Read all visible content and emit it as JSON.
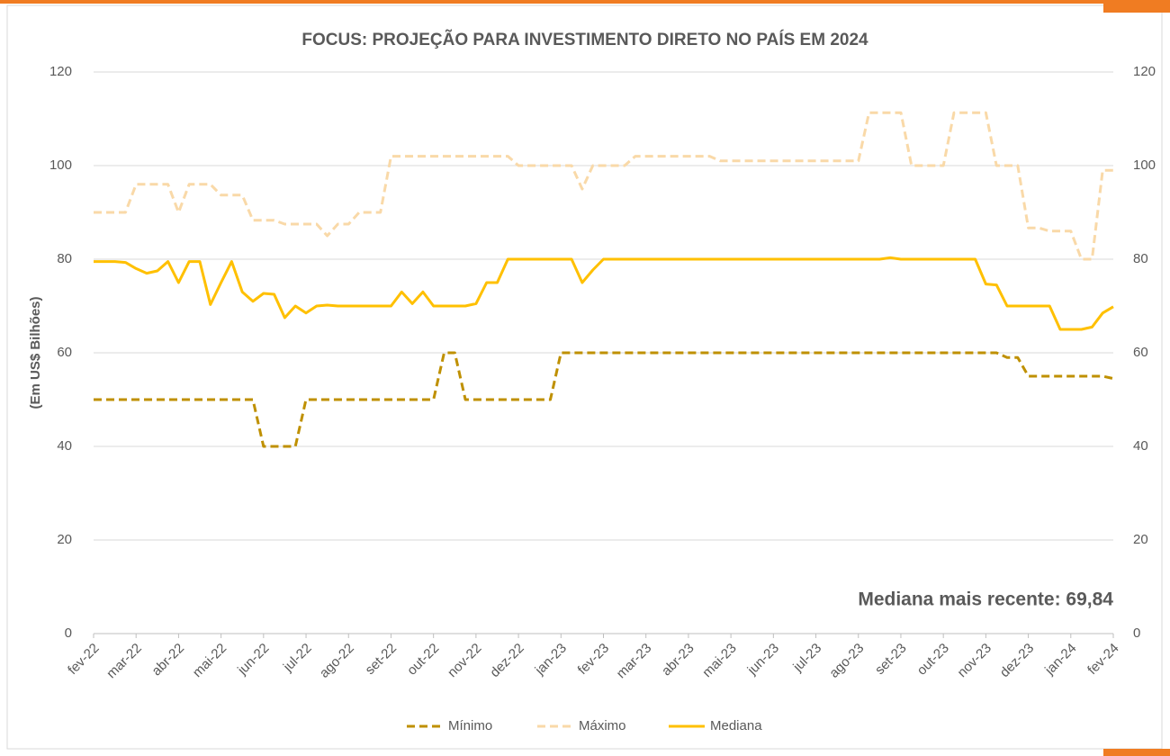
{
  "chart_data": {
    "type": "line",
    "title": "FOCUS: PROJEÇÃO PARA INVESTIMENTO DIRETO NO PAÍS EM 2024",
    "y_label": "(Em US$ Bilhões)",
    "annotation": "Mediana mais recente: 69,84",
    "categories": [
      "fev-22",
      null,
      null,
      null,
      "mar-22",
      null,
      null,
      null,
      "abr-22",
      null,
      null,
      null,
      "mai-22",
      null,
      null,
      null,
      "jun-22",
      null,
      null,
      null,
      "jul-22",
      null,
      null,
      null,
      "ago-22",
      null,
      null,
      null,
      "set-22",
      null,
      null,
      null,
      "out-22",
      null,
      null,
      null,
      "nov-22",
      null,
      null,
      null,
      "dez-22",
      null,
      null,
      null,
      "jan-23",
      null,
      null,
      null,
      "fev-23",
      null,
      null,
      null,
      "mar-23",
      null,
      null,
      null,
      "abr-23",
      null,
      null,
      null,
      "mai-23",
      null,
      null,
      null,
      "jun-23",
      null,
      null,
      null,
      "jul-23",
      null,
      null,
      null,
      "ago-23",
      null,
      null,
      null,
      "set-23",
      null,
      null,
      null,
      "out-23",
      null,
      null,
      null,
      "nov-23",
      null,
      null,
      null,
      "dez-23",
      null,
      null,
      null,
      "jan-24",
      null,
      null,
      null,
      "fev-24"
    ],
    "series": [
      {
        "name": "Mínimo",
        "color": "#bf9000",
        "dashed": true,
        "values": [
          50,
          50,
          50,
          50,
          50,
          50,
          50,
          50,
          50,
          50,
          50,
          50,
          50,
          50,
          50,
          50,
          40,
          40,
          40,
          40,
          50,
          50,
          50,
          50,
          50,
          50,
          50,
          50,
          50,
          50,
          50,
          50,
          50,
          60,
          60,
          50,
          50,
          50,
          50,
          50,
          50,
          50,
          50,
          50,
          60,
          60,
          60,
          60,
          60,
          60,
          60,
          60,
          60,
          60,
          60,
          60,
          60,
          60,
          60,
          60,
          60,
          60,
          60,
          60,
          60,
          60,
          60,
          60,
          60,
          60,
          60,
          60,
          60,
          60,
          60,
          60,
          60,
          60,
          60,
          60,
          60,
          60,
          60,
          60,
          60,
          60,
          59,
          59,
          55,
          55,
          55,
          55,
          55,
          55,
          55,
          55,
          54.5
        ]
      },
      {
        "name": "Máximo",
        "color": "#f9d9a8",
        "dashed": true,
        "values": [
          90,
          90,
          90,
          90,
          96,
          96,
          96,
          96,
          90,
          96,
          96,
          96,
          93.7,
          93.7,
          93.7,
          88.3,
          88.3,
          88.3,
          87.5,
          87.5,
          87.5,
          87.5,
          85,
          87.5,
          87.5,
          90,
          90,
          90,
          102,
          102,
          102,
          102,
          102,
          102,
          102,
          102,
          102,
          102,
          102,
          102,
          100,
          100,
          100,
          100,
          100,
          100,
          95,
          100,
          100,
          100,
          100,
          102,
          102,
          102,
          102,
          102,
          102,
          102,
          102,
          101,
          101,
          101,
          101,
          101,
          101,
          101,
          101,
          101,
          101,
          101,
          101,
          101,
          101,
          111.3,
          111.3,
          111.3,
          111.3,
          100,
          100,
          100,
          100,
          111.3,
          111.3,
          111.3,
          111.3,
          100,
          100,
          100,
          86.7,
          86.7,
          86,
          86,
          86,
          80,
          80,
          99,
          99
        ]
      },
      {
        "name": "Mediana",
        "color": "#ffc000",
        "dashed": false,
        "values": [
          79.5,
          79.5,
          79.5,
          79.3,
          78,
          77,
          77.5,
          79.5,
          75,
          79.5,
          79.5,
          70.3,
          75,
          79.5,
          73,
          71,
          72.7,
          72.5,
          67.5,
          70,
          68.5,
          70,
          70.2,
          70,
          70,
          70,
          70,
          70,
          70,
          73,
          70.5,
          73,
          70,
          70,
          70,
          70,
          70.5,
          75,
          75,
          80,
          80,
          80,
          80,
          80,
          80,
          80,
          75,
          77.7,
          80,
          80,
          80,
          80,
          80,
          80,
          80,
          80,
          80,
          80,
          80,
          80,
          80,
          80,
          80,
          80,
          80,
          80,
          80,
          80,
          80,
          80,
          80,
          80,
          80,
          80,
          80,
          80.3,
          80,
          80,
          80,
          80,
          80,
          80,
          80,
          80,
          74.7,
          74.5,
          70,
          70,
          70,
          70,
          70,
          65,
          65,
          65,
          65.5,
          68.5,
          69.84
        ]
      }
    ],
    "ylim": [
      0,
      120
    ],
    "yticks": [
      0,
      20,
      40,
      60,
      80,
      100,
      120
    ],
    "y2lim": [
      0,
      120
    ],
    "y2ticks": [
      0,
      20,
      40,
      60,
      80,
      100,
      120
    ],
    "grid": true,
    "legend": "bottom"
  }
}
